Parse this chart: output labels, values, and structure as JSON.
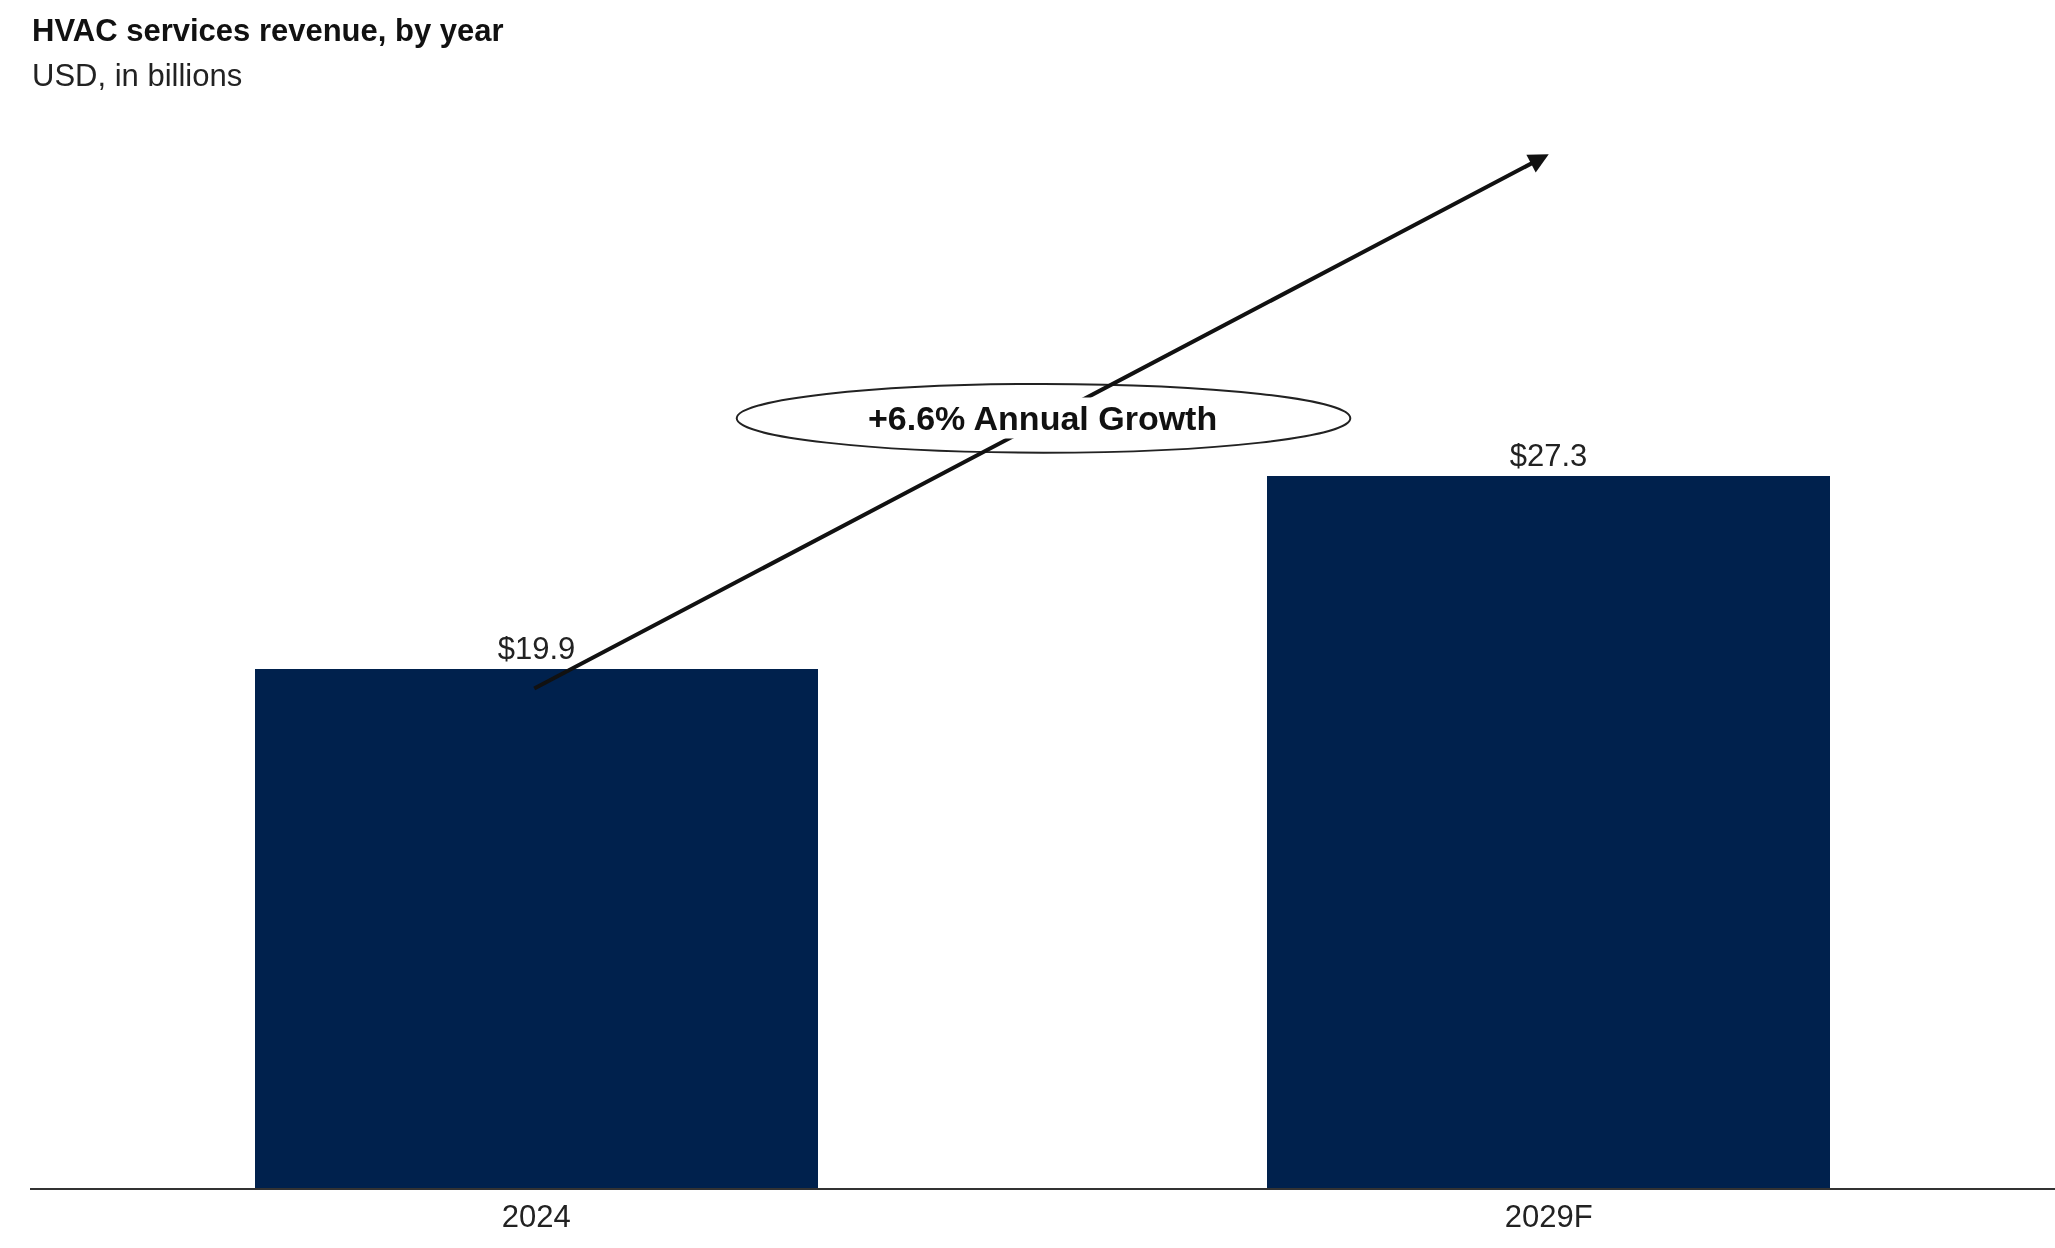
{
  "chart_data": {
    "type": "bar",
    "title": "HVAC services revenue, by year",
    "subtitle": "USD, in billions",
    "categories": [
      "2024",
      "2029F"
    ],
    "values": [
      19.9,
      27.3
    ],
    "color": "#00214d",
    "value_labels": [
      "$19.9",
      "$27.3"
    ],
    "annotations": [
      "+6.6% Annual Growth"
    ]
  }
}
